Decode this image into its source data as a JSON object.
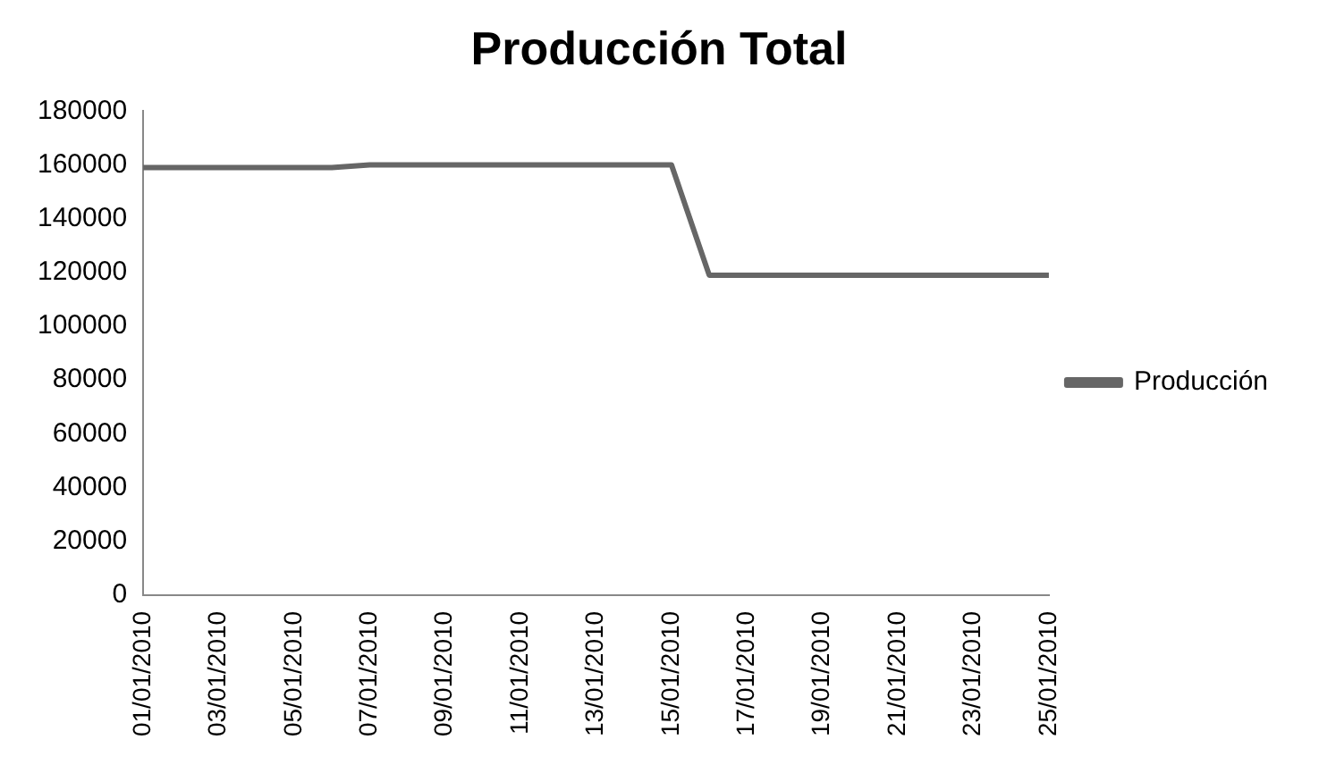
{
  "chart_data": {
    "type": "line",
    "title": "Producción Total",
    "categories": [
      "01/01/2010",
      null,
      "03/01/2010",
      null,
      "05/01/2010",
      null,
      "07/01/2010",
      null,
      "09/01/2010",
      null,
      "11/01/2010",
      null,
      "13/01/2010",
      null,
      "15/01/2010",
      null,
      "17/01/2010",
      null,
      "19/01/2010",
      null,
      "21/01/2010",
      null,
      "23/01/2010",
      null,
      "25/01/2010"
    ],
    "series": [
      {
        "name": "Producción",
        "color": "#666666",
        "values": [
          159000,
          159000,
          159000,
          159000,
          159000,
          159000,
          160000,
          160000,
          160000,
          160000,
          160000,
          160000,
          160000,
          160000,
          160000,
          119000,
          119000,
          119000,
          119000,
          119000,
          119000,
          119000,
          119000,
          119000,
          119000
        ]
      }
    ],
    "ylim": [
      0,
      180000
    ],
    "yticks": [
      0,
      20000,
      40000,
      60000,
      80000,
      100000,
      120000,
      140000,
      160000,
      180000
    ],
    "grid": false,
    "legend": "right",
    "marker": "none",
    "line_style": "solid"
  }
}
